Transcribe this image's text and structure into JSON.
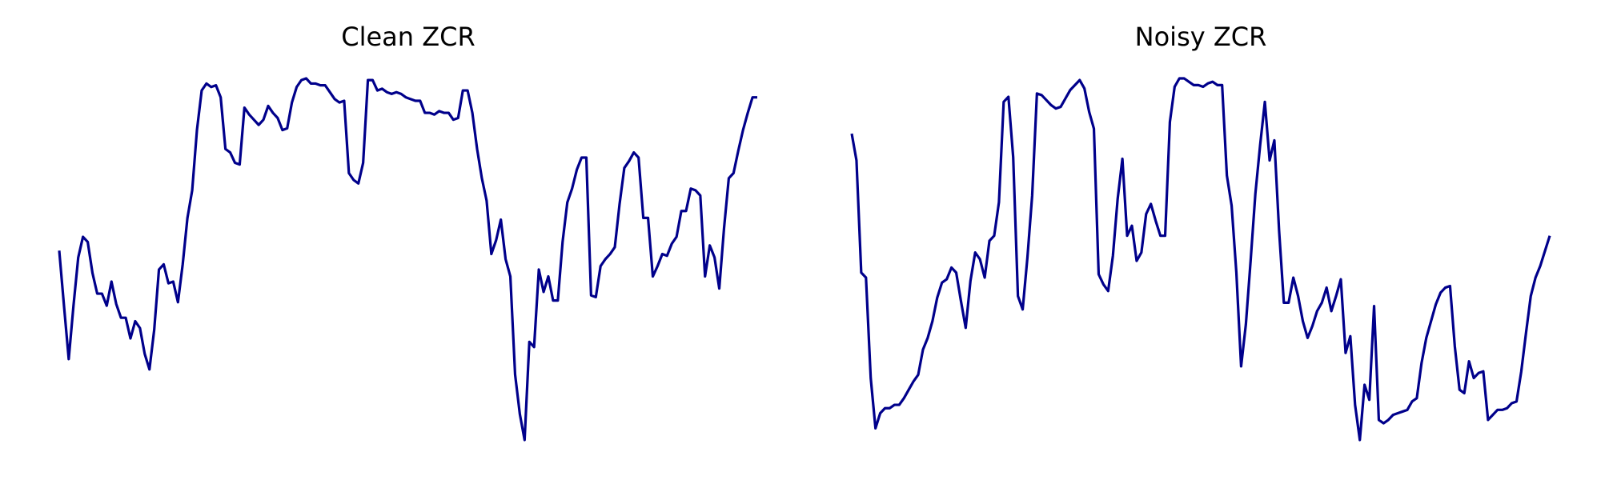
{
  "chart_data": [
    {
      "type": "line",
      "title": "Clean ZCR",
      "xlabel": "",
      "ylabel": "",
      "axes_visible": false,
      "grid": false,
      "line_color": "#00008b",
      "series": [
        {
          "values": [
            0.6,
            0.44,
            0.285,
            0.44,
            0.58,
            0.64,
            0.625,
            0.535,
            0.475,
            0.475,
            0.44,
            0.51,
            0.445,
            0.405,
            0.405,
            0.345,
            0.395,
            0.375,
            0.3,
            0.255,
            0.37,
            0.545,
            0.56,
            0.505,
            0.51,
            0.45,
            0.56,
            0.695,
            0.775,
            0.95,
            1.065,
            1.085,
            1.075,
            1.08,
            1.045,
            0.895,
            0.885,
            0.855,
            0.85,
            1.015,
            0.995,
            0.98,
            0.965,
            0.98,
            1.02,
            1.0,
            0.985,
            0.95,
            0.955,
            1.03,
            1.075,
            1.095,
            1.1,
            1.085,
            1.085,
            1.08,
            1.08,
            1.06,
            1.04,
            1.03,
            1.035,
            0.825,
            0.805,
            0.795,
            0.855,
            1.095,
            1.095,
            1.065,
            1.07,
            1.06,
            1.055,
            1.06,
            1.055,
            1.045,
            1.04,
            1.035,
            1.035,
            1.0,
            1.0,
            0.995,
            1.005,
            1.0,
            1.0,
            0.98,
            0.985,
            1.065,
            1.065,
            1.0,
            0.895,
            0.81,
            0.745,
            0.59,
            0.63,
            0.69,
            0.575,
            0.525,
            0.24,
            0.125,
            0.05,
            0.335,
            0.32,
            0.545,
            0.48,
            0.525,
            0.455,
            0.455,
            0.625,
            0.74,
            0.78,
            0.835,
            0.87,
            0.87,
            0.47,
            0.465,
            0.555,
            0.575,
            0.59,
            0.61,
            0.735,
            0.84,
            0.86,
            0.885,
            0.87,
            0.695,
            0.695,
            0.525,
            0.555,
            0.59,
            0.585,
            0.62,
            0.64,
            0.715,
            0.715,
            0.78,
            0.775,
            0.76,
            0.525,
            0.615,
            0.58,
            0.49,
            0.665,
            0.81,
            0.825,
            0.89,
            0.95,
            1.0,
            1.045,
            1.045
          ]
        }
      ]
    },
    {
      "type": "line",
      "title": "Noisy ZCR",
      "xlabel": "",
      "ylabel": "",
      "axes_visible": false,
      "grid": false,
      "line_color": "#00008b",
      "series": [
        {
          "values": [
            0.93,
            0.85,
            0.515,
            0.5,
            0.2,
            0.05,
            0.095,
            0.11,
            0.11,
            0.12,
            0.12,
            0.14,
            0.165,
            0.19,
            0.21,
            0.285,
            0.32,
            0.37,
            0.44,
            0.485,
            0.495,
            0.53,
            0.515,
            0.43,
            0.35,
            0.49,
            0.575,
            0.555,
            0.5,
            0.61,
            0.625,
            0.725,
            1.025,
            1.04,
            0.86,
            0.445,
            0.405,
            0.56,
            0.745,
            1.05,
            1.045,
            1.03,
            1.015,
            1.005,
            1.01,
            1.035,
            1.06,
            1.075,
            1.09,
            1.065,
            0.995,
            0.945,
            0.51,
            0.48,
            0.46,
            0.565,
            0.735,
            0.855,
            0.625,
            0.655,
            0.55,
            0.575,
            0.69,
            0.72,
            0.67,
            0.625,
            0.625,
            0.965,
            1.07,
            1.095,
            1.095,
            1.085,
            1.075,
            1.075,
            1.07,
            1.08,
            1.085,
            1.075,
            1.075,
            0.805,
            0.715,
            0.515,
            0.235,
            0.36,
            0.55,
            0.75,
            0.895,
            1.025,
            0.85,
            0.91,
            0.64,
            0.425,
            0.425,
            0.5,
            0.445,
            0.37,
            0.32,
            0.355,
            0.4,
            0.425,
            0.47,
            0.4,
            0.445,
            0.495,
            0.275,
            0.325,
            0.12,
            0.015,
            0.18,
            0.135,
            0.415,
            0.075,
            0.065,
            0.075,
            0.09,
            0.095,
            0.1,
            0.105,
            0.13,
            0.14,
            0.245,
            0.32,
            0.37,
            0.42,
            0.455,
            0.47,
            0.475,
            0.295,
            0.165,
            0.155,
            0.25,
            0.2,
            0.215,
            0.22,
            0.075,
            0.09,
            0.105,
            0.105,
            0.11,
            0.125,
            0.13,
            0.22,
            0.335,
            0.445,
            0.5,
            0.535,
            0.58,
            0.625
          ]
        }
      ]
    }
  ]
}
